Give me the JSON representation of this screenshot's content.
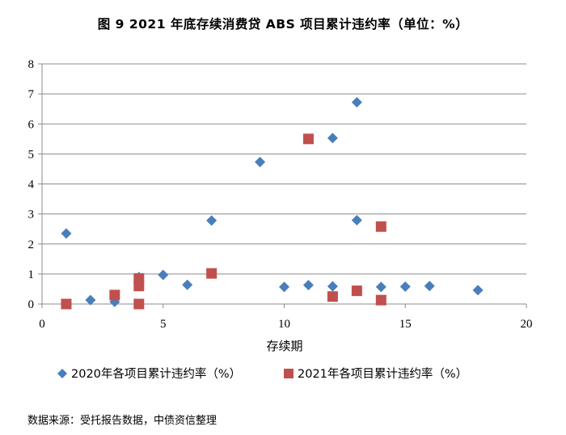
{
  "title": "图 9  2021 年底存续消费贷 ABS 项目累计违约率（单位：%）",
  "source": "数据来源：受托报告数据，中债资信整理",
  "chart_data": {
    "type": "scatter",
    "xlabel": "存续期",
    "ylabel": "",
    "xlim": [
      0,
      20
    ],
    "ylim": [
      0,
      8
    ],
    "xticks": [
      0,
      5,
      10,
      15,
      20
    ],
    "yticks": [
      0,
      1,
      2,
      3,
      4,
      5,
      6,
      7,
      8
    ],
    "grid": "horizontal",
    "legend_position": "bottom",
    "series": [
      {
        "name": "2020年各项目累计违约率（%）",
        "marker": "diamond",
        "color": "#4A7EBB",
        "points": [
          [
            1,
            2.35
          ],
          [
            2,
            0.13
          ],
          [
            3,
            0.07
          ],
          [
            4,
            0.9
          ],
          [
            5,
            0.97
          ],
          [
            6,
            0.64
          ],
          [
            7,
            2.78
          ],
          [
            9,
            4.73
          ],
          [
            10,
            0.57
          ],
          [
            11,
            0.63
          ],
          [
            12,
            5.53
          ],
          [
            12,
            0.59
          ],
          [
            13,
            6.72
          ],
          [
            13,
            2.79
          ],
          [
            14,
            0.57
          ],
          [
            15,
            0.58
          ],
          [
            16,
            0.6
          ],
          [
            18,
            0.46
          ]
        ]
      },
      {
        "name": "2021年各项目累计违约率（%）",
        "marker": "square",
        "color": "#C0504D",
        "points": [
          [
            1,
            0.0
          ],
          [
            3,
            0.3
          ],
          [
            4,
            0.85
          ],
          [
            4,
            0.6
          ],
          [
            4,
            0.0
          ],
          [
            7,
            1.02
          ],
          [
            11,
            5.5
          ],
          [
            12,
            0.25
          ],
          [
            13,
            0.44
          ],
          [
            14,
            2.58
          ],
          [
            14,
            0.13
          ]
        ]
      }
    ]
  }
}
